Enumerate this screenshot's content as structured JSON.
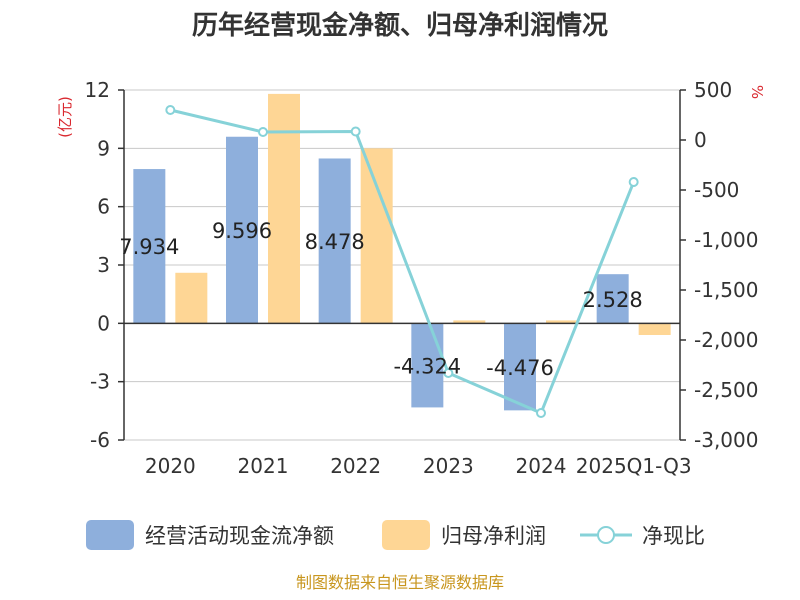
{
  "chart_data": {
    "type": "bar",
    "title": "历年经营现金净额、归母净利润情况",
    "categories": [
      "2020",
      "2021",
      "2022",
      "2023",
      "2024",
      "2025Q1-Q3"
    ],
    "series": [
      {
        "name": "经营活动现金流净额",
        "kind": "bar",
        "axis": "left",
        "values": [
          7.934,
          9.596,
          8.478,
          -4.324,
          -4.476,
          2.528
        ],
        "labels": [
          "7.934",
          "9.596",
          "8.478",
          "-4.324",
          "-4.476",
          "2.528"
        ]
      },
      {
        "name": "归母净利润",
        "kind": "bar",
        "axis": "left",
        "values": [
          2.6,
          11.8,
          9.0,
          0.15,
          0.15,
          -0.6
        ]
      },
      {
        "name": "净现比",
        "kind": "line",
        "axis": "right",
        "values": [
          300,
          80,
          85,
          -2330,
          -2730,
          -420
        ]
      }
    ],
    "left_axis": {
      "unit": "(亿元)",
      "ylim": [
        -6,
        12
      ],
      "ticks": [
        12,
        9,
        6,
        3,
        0,
        -3,
        -6
      ],
      "tick_labels": [
        "12",
        "9",
        "6",
        "3",
        "0",
        "-3",
        "-6"
      ]
    },
    "right_axis": {
      "unit": "%",
      "ylim": [
        -3000,
        500
      ],
      "ticks": [
        500,
        0,
        -500,
        -1000,
        -1500,
        -2000,
        -2500,
        -3000
      ],
      "tick_labels": [
        "500",
        "0",
        "-500",
        "-1,000",
        "-1,500",
        "-2,000",
        "-2,500",
        "-3,000"
      ]
    },
    "grid": true,
    "legend_position": "bottom",
    "colors": {
      "bar1": "#8eafdc",
      "bar2": "#fed695",
      "line": "#86d2d8",
      "grid": "#c8c8c8",
      "axis": "#333333"
    }
  },
  "source": "制图数据来自恒生聚源数据库"
}
